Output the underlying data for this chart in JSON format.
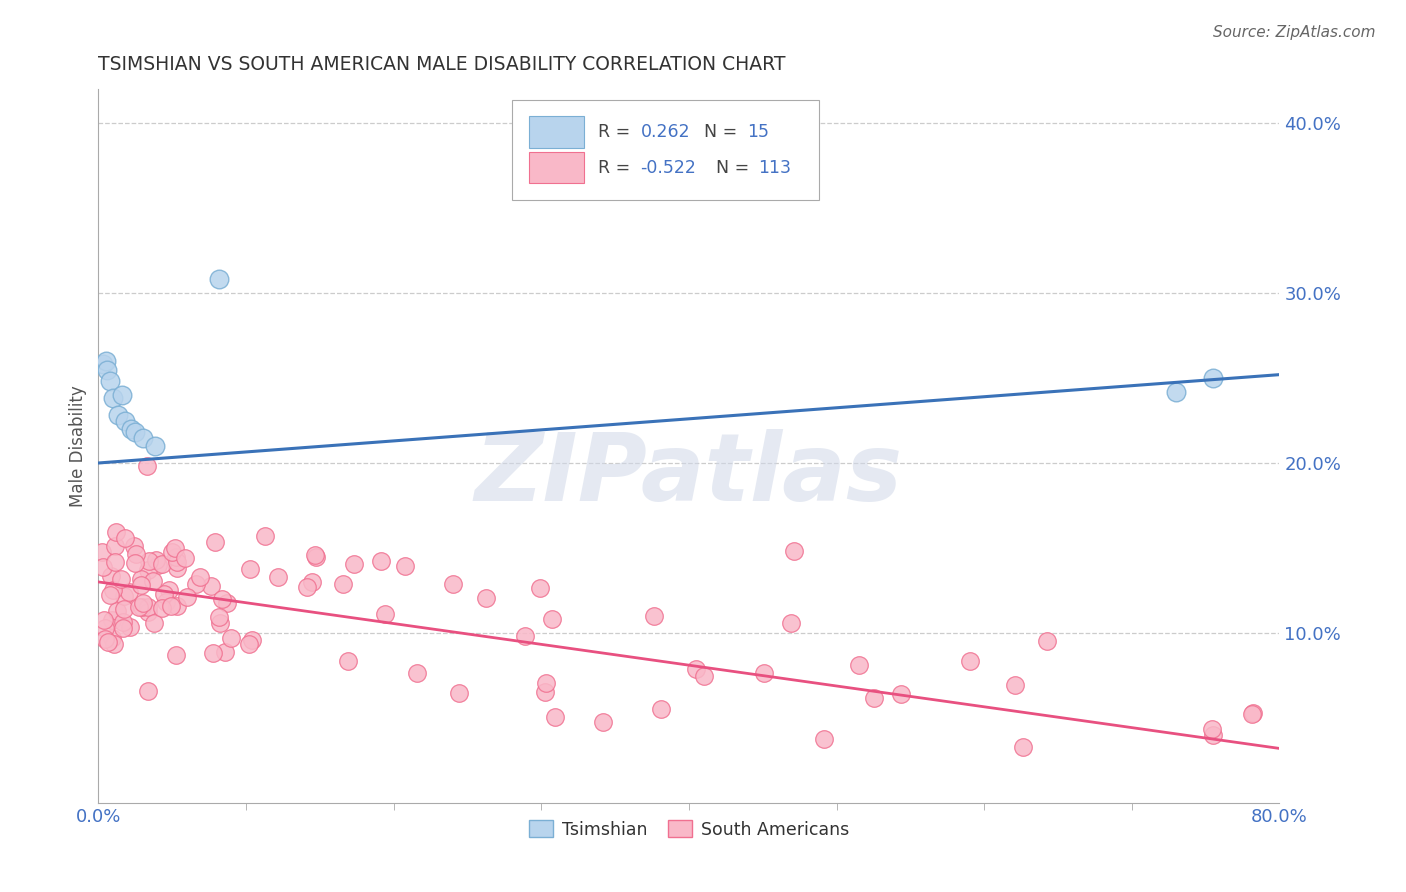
{
  "title": "TSIMSHIAN VS SOUTH AMERICAN MALE DISABILITY CORRELATION CHART",
  "source": "Source: ZipAtlas.com",
  "ylabel": "Male Disability",
  "xlim": [
    0.0,
    0.8
  ],
  "ylim": [
    0.0,
    0.42
  ],
  "xtick_vals": [
    0.0,
    0.8
  ],
  "xtick_labels": [
    "0.0%",
    "80.0%"
  ],
  "ytick_right_vals": [
    0.1,
    0.2,
    0.3,
    0.4
  ],
  "ytick_right_labels": [
    "10.0%",
    "20.0%",
    "30.0%",
    "40.0%"
  ],
  "grid_color": "#cccccc",
  "background": "#ffffff",
  "blue_dot_face": "#b8d4ed",
  "blue_dot_edge": "#7bafd4",
  "pink_dot_face": "#f9b8c8",
  "pink_dot_edge": "#f07090",
  "blue_line_color": "#3a72b8",
  "pink_line_color": "#e85080",
  "tick_label_color": "#4472c4",
  "title_color": "#333333",
  "source_color": "#666666",
  "blue_R": 0.262,
  "blue_N": 15,
  "pink_R": -0.522,
  "pink_N": 113,
  "legend_blue_label": "Tsimshian",
  "legend_pink_label": "South Americans",
  "watermark": "ZIPatlas"
}
